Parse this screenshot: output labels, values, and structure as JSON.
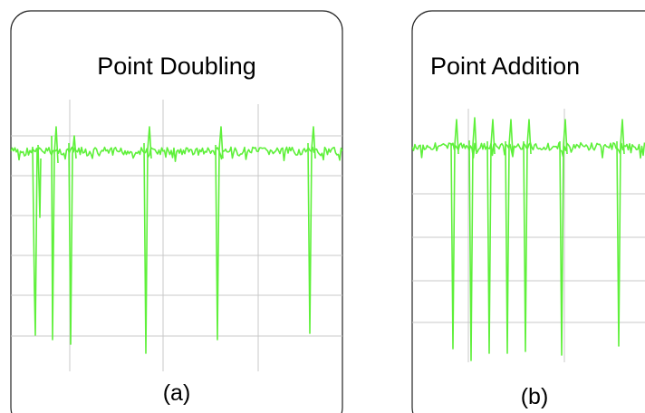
{
  "panels": [
    {
      "title": "Point Doubling",
      "label": "(a)"
    },
    {
      "title": "Point Addition",
      "label": "(b)"
    }
  ]
}
